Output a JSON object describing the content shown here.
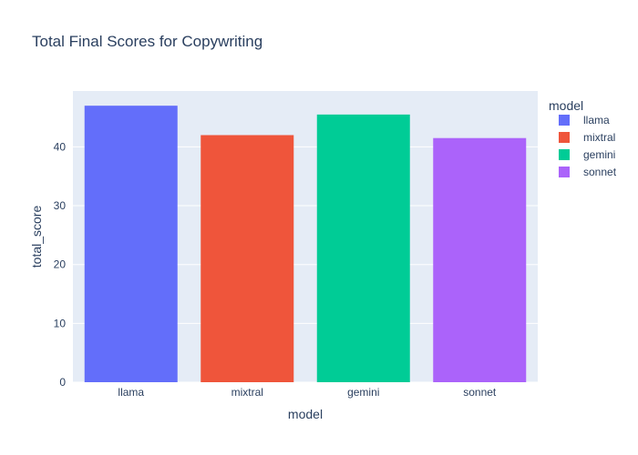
{
  "chart_data": {
    "type": "bar",
    "title": "Total Final Scores for Copywriting",
    "xlabel": "model",
    "ylabel": "total_score",
    "categories": [
      "llama",
      "mixtral",
      "gemini",
      "sonnet"
    ],
    "values": [
      47,
      42,
      45.5,
      41.5
    ],
    "colors": [
      "#636efa",
      "#ef553b",
      "#00cc96",
      "#ab63fa"
    ],
    "ylim": [
      0,
      49.5
    ],
    "yticks": [
      0,
      10,
      20,
      30,
      40
    ],
    "grid": true,
    "legend": {
      "title": "model",
      "placement": "top-right",
      "entries": [
        "llama",
        "mixtral",
        "gemini",
        "sonnet"
      ]
    },
    "plot_background": "#e5ecf6"
  }
}
